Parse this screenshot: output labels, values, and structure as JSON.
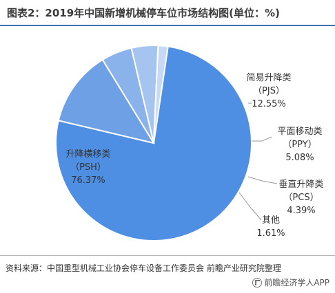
{
  "chart_data": {
    "type": "pie",
    "title": "图表2：2019年中国新增机械停车位市场结构图(单位：%)",
    "series": [
      {
        "name": "",
        "slices": [
          {
            "label": "升降横移类",
            "code": "（PSH）",
            "value": 76.37,
            "value_text": "76.37%",
            "color": "#4f8fe3"
          },
          {
            "label": "简易升降类",
            "code": "（PJS）",
            "value": 12.55,
            "value_text": "12.55%",
            "color": "#6ea0e6"
          },
          {
            "label": "平面移动类",
            "code": "（PPY）",
            "value": 5.08,
            "value_text": "5.08%",
            "color": "#8ab3ec"
          },
          {
            "label": "垂直升降类",
            "code": "（PCS）",
            "value": 4.39,
            "value_text": "4.39%",
            "color": "#a5c4f0"
          },
          {
            "label": "其他",
            "code": "",
            "value": 1.61,
            "value_text": "1.61%",
            "color": "#c6daf6"
          }
        ]
      }
    ],
    "legend": "none"
  },
  "footer": {
    "source": "资料来源：中国重型机械工业协会停车设备工作委员会 前瞻产业研究院整理",
    "brand": "前瞻经济学人APP"
  }
}
